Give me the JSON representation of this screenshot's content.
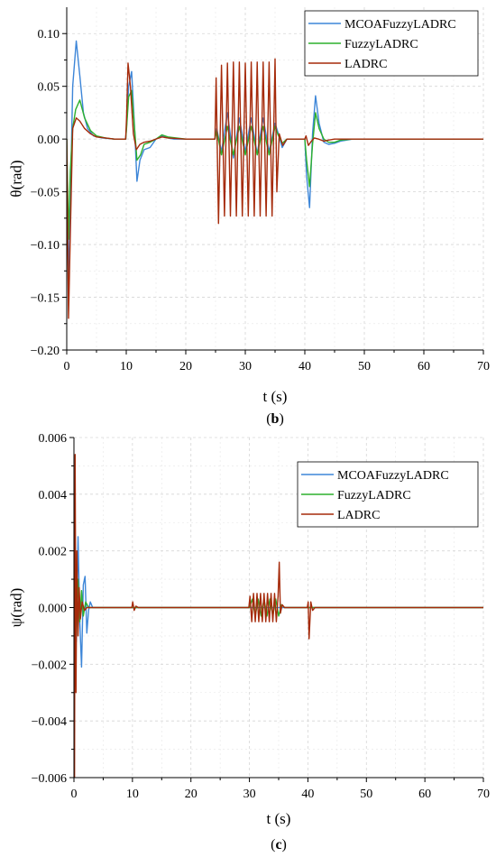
{
  "chart_data": [
    {
      "type": "line",
      "panel_label": "(b)",
      "panel_letter": "b",
      "xlabel": "t (s)",
      "ylabel": "θ(rad)",
      "xlim": [
        0,
        70
      ],
      "ylim": [
        -0.2,
        0.125
      ],
      "xticks": [
        "0",
        "10",
        "20",
        "30",
        "40",
        "50",
        "60",
        "70"
      ],
      "xtick_values": [
        0,
        10,
        20,
        30,
        40,
        50,
        60,
        70
      ],
      "yticks": [
        "0.10",
        "0.05",
        "0.00",
        "−0.05",
        "−0.10",
        "−0.15",
        "−0.20"
      ],
      "ytick_values": [
        0.1,
        0.05,
        0.0,
        -0.05,
        -0.1,
        -0.15,
        -0.2
      ],
      "grid": true,
      "legend_position": "top-right",
      "series": [
        {
          "name": "MCOAFuzzyLADRC",
          "color": "#3d86d8",
          "x": [
            0,
            0.3,
            0.6,
            1.0,
            1.6,
            2.2,
            2.8,
            3.5,
            4.5,
            6,
            8,
            9.9,
            10.05,
            10.4,
            10.9,
            11.4,
            11.8,
            12.3,
            13,
            14,
            15,
            16,
            17,
            18,
            20,
            24.9,
            25.2,
            26,
            27,
            28,
            29,
            30,
            31,
            32,
            33,
            34,
            35,
            35.5,
            36.2,
            37,
            40,
            40.3,
            40.8,
            41.3,
            41.8,
            42.4,
            43.2,
            44,
            45,
            46,
            47,
            48,
            50,
            70
          ],
          "y": [
            0,
            -0.14,
            -0.06,
            0.05,
            0.093,
            0.06,
            0.025,
            0.01,
            0.003,
            0.001,
            0,
            0,
            0.012,
            0.05,
            0.064,
            0.01,
            -0.04,
            -0.02,
            -0.01,
            -0.008,
            0,
            0.003,
            0.001,
            0,
            0,
            0,
            0.01,
            -0.012,
            0.025,
            -0.018,
            0.02,
            -0.012,
            0.02,
            -0.014,
            0.02,
            -0.012,
            0.015,
            0.006,
            -0.008,
            0,
            0,
            -0.035,
            -0.065,
            0.005,
            0.041,
            0.015,
            -0.003,
            -0.005,
            -0.004,
            -0.002,
            -0.001,
            0,
            0,
            0
          ]
        },
        {
          "name": "FuzzyLADRC",
          "color": "#2db02d",
          "x": [
            0,
            0.3,
            0.6,
            1.0,
            1.5,
            2.2,
            3,
            4,
            5,
            6.5,
            8,
            9.9,
            10.05,
            10.4,
            10.9,
            11.4,
            11.8,
            12.4,
            13,
            14,
            15,
            16,
            17,
            20,
            24.9,
            25.2,
            26,
            27,
            28,
            29,
            30,
            31,
            32,
            33,
            34,
            35,
            35.5,
            36.2,
            37,
            40,
            40.3,
            40.8,
            41.3,
            41.8,
            42.4,
            43.2,
            44,
            45,
            46,
            48,
            50,
            70
          ],
          "y": [
            0,
            -0.095,
            -0.03,
            0.01,
            0.028,
            0.037,
            0.02,
            0.008,
            0.003,
            0.001,
            0,
            0,
            0.01,
            0.04,
            0.046,
            0.01,
            -0.02,
            -0.015,
            -0.005,
            -0.003,
            0,
            0.004,
            0.002,
            0,
            0,
            0.008,
            -0.015,
            0.012,
            -0.015,
            0.012,
            -0.015,
            0.012,
            -0.015,
            0.012,
            -0.015,
            0.012,
            0.004,
            -0.004,
            0,
            0,
            -0.02,
            -0.045,
            -0.005,
            0.025,
            0.01,
            0,
            -0.003,
            -0.003,
            -0.001,
            0,
            0,
            0
          ]
        },
        {
          "name": "LADRC",
          "color": "#a52a0a",
          "x": [
            0,
            0.3,
            0.6,
            1.0,
            1.6,
            2.2,
            3,
            4,
            5,
            6.5,
            8,
            9.9,
            10.05,
            10.3,
            10.7,
            11.2,
            11.7,
            12.3,
            13,
            14,
            15,
            16,
            17,
            20,
            24.9,
            25.1,
            25.5,
            26,
            26.5,
            27,
            27.5,
            28,
            28.5,
            29,
            29.5,
            30,
            30.5,
            31,
            31.5,
            32,
            32.5,
            33,
            33.5,
            34,
            34.5,
            35,
            35.3,
            35.7,
            36.3,
            37,
            40,
            40.2,
            40.6,
            41.1,
            41.6,
            42.3,
            43.2,
            44,
            45,
            46,
            48,
            50,
            70
          ],
          "y": [
            0,
            -0.17,
            -0.09,
            0.01,
            0.02,
            0.017,
            0.01,
            0.005,
            0.002,
            0.001,
            0,
            0,
            0.02,
            0.072,
            0.05,
            0.005,
            -0.01,
            -0.005,
            -0.003,
            -0.002,
            0,
            0.002,
            0.001,
            0,
            0,
            0.058,
            -0.08,
            0.07,
            -0.073,
            0.072,
            -0.073,
            0.073,
            -0.073,
            0.073,
            -0.073,
            0.072,
            -0.073,
            0.073,
            -0.073,
            0.073,
            -0.073,
            0.073,
            -0.073,
            0.073,
            -0.073,
            0.076,
            -0.05,
            0.005,
            -0.006,
            0,
            0,
            0.003,
            -0.006,
            -0.002,
            0.001,
            0,
            -0.002,
            -0.001,
            0,
            0,
            0,
            0,
            0
          ]
        }
      ]
    },
    {
      "type": "line",
      "panel_label": "(c)",
      "panel_letter": "c",
      "xlabel": "t (s)",
      "ylabel": "ψ(rad)",
      "xlim": [
        0,
        70
      ],
      "ylim": [
        -0.006,
        0.006
      ],
      "xticks": [
        "0",
        "10",
        "20",
        "30",
        "40",
        "50",
        "60",
        "70"
      ],
      "xtick_values": [
        0,
        10,
        20,
        30,
        40,
        50,
        60,
        70
      ],
      "yticks": [
        "0.006",
        "0.004",
        "0.002",
        "0.000",
        "−0.002",
        "−0.004",
        "−0.006"
      ],
      "ytick_values": [
        0.006,
        0.004,
        0.002,
        0.0,
        -0.002,
        -0.004,
        -0.006
      ],
      "grid": true,
      "legend_position": "top-right",
      "series": [
        {
          "name": "MCOAFuzzyLADRC",
          "color": "#3d86d8",
          "x": [
            0,
            0.15,
            0.4,
            0.7,
            1.0,
            1.3,
            1.6,
            1.9,
            2.2,
            2.5,
            2.8,
            3.2,
            4,
            10,
            40,
            70
          ],
          "y": [
            0,
            0.002,
            -0.0012,
            0.0025,
            -0.0005,
            -0.0021,
            0.0008,
            0.0011,
            -0.0009,
            -0.0001,
            0.0002,
            0,
            0,
            0,
            0,
            0
          ]
        },
        {
          "name": "FuzzyLADRC",
          "color": "#2db02d",
          "x": [
            0,
            0.15,
            0.4,
            0.7,
            1.0,
            1.3,
            1.6,
            2,
            2.5,
            3,
            10,
            30,
            30.5,
            31,
            31.5,
            32,
            32.5,
            33,
            33.5,
            34,
            34.5,
            35,
            35.5,
            36,
            40,
            70
          ],
          "y": [
            0,
            0.003,
            -0.001,
            0.001,
            -0.0005,
            0.0006,
            -0.0003,
            0.0002,
            0,
            0,
            0,
            0,
            0.0003,
            -0.0003,
            0.0003,
            -0.0003,
            0.0003,
            -0.0003,
            0.0003,
            -0.0003,
            0.0003,
            -0.0003,
            0.0001,
            0,
            0,
            0
          ]
        },
        {
          "name": "LADRC",
          "color": "#a52a0a",
          "x": [
            0,
            0.1,
            0.2,
            0.35,
            0.5,
            0.7,
            0.9,
            1.1,
            1.4,
            1.8,
            2.2,
            3,
            9.9,
            10.05,
            10.3,
            10.6,
            11,
            12,
            29.9,
            30.1,
            30.4,
            30.7,
            31,
            31.3,
            31.6,
            31.9,
            32.2,
            32.5,
            32.8,
            33.1,
            33.4,
            33.7,
            34,
            34.3,
            34.6,
            34.9,
            35.1,
            35.3,
            35.6,
            36,
            39.9,
            40.05,
            40.2,
            40.5,
            40.8,
            41.2,
            42,
            70
          ],
          "y": [
            0,
            -0.006,
            0.0054,
            -0.003,
            0.002,
            -0.001,
            0.0007,
            -0.0004,
            0.0002,
            -0.0001,
            0,
            0,
            0,
            0.0002,
            -0.0001,
            5e-05,
            0,
            0,
            0,
            0.0004,
            -0.0005,
            0.0005,
            -0.0005,
            0.0005,
            -0.0005,
            0.0005,
            -0.0005,
            0.0005,
            -0.0005,
            0.0005,
            -0.0005,
            0.0005,
            -0.0005,
            0.0005,
            -0.0005,
            0.0004,
            0.0016,
            -0.0002,
            0.0001,
            0,
            0,
            0.0002,
            -0.0011,
            0.0002,
            -0.0001,
            0,
            0,
            0
          ]
        }
      ]
    }
  ]
}
